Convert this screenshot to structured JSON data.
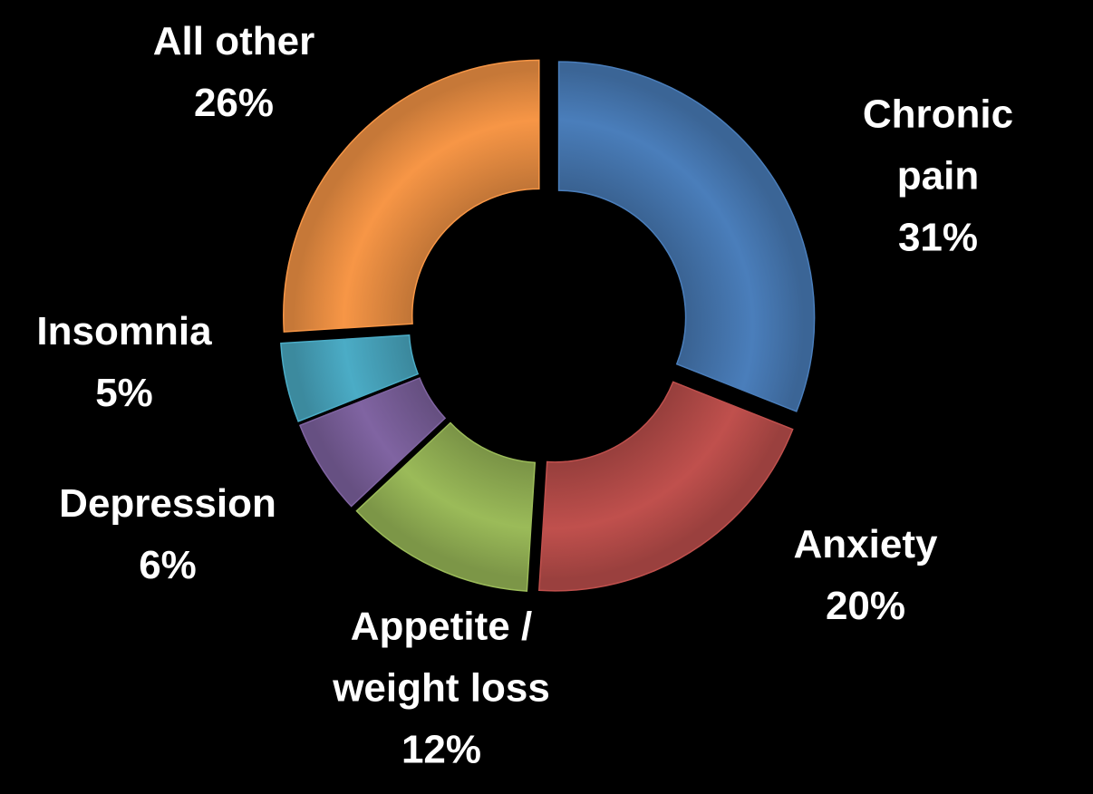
{
  "chart_data": {
    "type": "donut",
    "categories": [
      "Chronic pain",
      "Anxiety",
      "Appetite / weight loss",
      "Depression",
      "Insomnia",
      "All other"
    ],
    "values": [
      31,
      20,
      12,
      6,
      5,
      26
    ],
    "value_labels": [
      "31%",
      "20%",
      "12%",
      "6%",
      "5%",
      "26%"
    ],
    "colors": [
      "#4a7ebb",
      "#c0504d",
      "#9bbb59",
      "#8064a2",
      "#4bacc6",
      "#f79646"
    ]
  }
}
